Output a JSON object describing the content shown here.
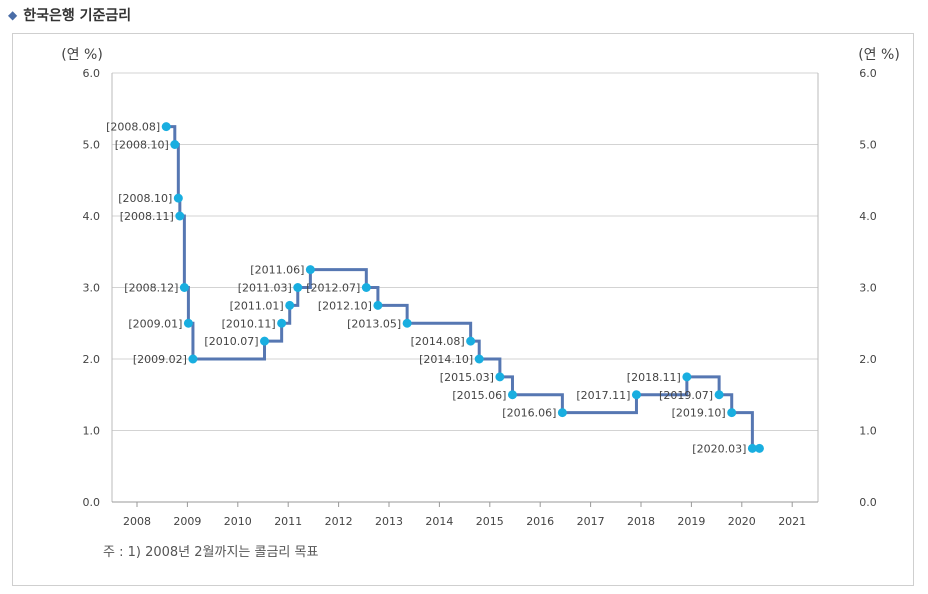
{
  "header": {
    "title": "한국은행 기준금리",
    "bullet_icon": "diamond-icon"
  },
  "footnote": "주 : 1) 2008년 2월까지는 콜금리 목표",
  "chart_data": {
    "type": "line",
    "step": true,
    "title": "",
    "ylabel_left": "(연 %)",
    "ylabel_right": "(연 %)",
    "ylim": [
      0,
      6
    ],
    "xlim": [
      2008,
      2021
    ],
    "y_ticks": [
      "0.0",
      "1.0",
      "2.0",
      "3.0",
      "4.0",
      "5.0",
      "6.0"
    ],
    "x_ticks": [
      "2008",
      "2009",
      "2010",
      "2011",
      "2012",
      "2013",
      "2014",
      "2015",
      "2016",
      "2017",
      "2018",
      "2019",
      "2020",
      "2021"
    ],
    "grid": true,
    "colors": {
      "line": "#5677b2",
      "marker": "#19aee0",
      "grid": "#d3d3d3"
    },
    "points": [
      {
        "label": "[2008.08]",
        "x": 2008.58,
        "y": 5.25
      },
      {
        "label": "[2008.10]",
        "x": 2008.75,
        "y": 5.0
      },
      {
        "label": "[2008.10]",
        "x": 2008.82,
        "y": 4.25
      },
      {
        "label": "[2008.11]",
        "x": 2008.85,
        "y": 4.0
      },
      {
        "label": "[2008.12]",
        "x": 2008.94,
        "y": 3.0
      },
      {
        "label": "[2009.01]",
        "x": 2009.02,
        "y": 2.5
      },
      {
        "label": "[2009.02]",
        "x": 2009.11,
        "y": 2.0
      },
      {
        "label": "[2010.07]",
        "x": 2010.53,
        "y": 2.25
      },
      {
        "label": "[2010.11]",
        "x": 2010.87,
        "y": 2.5
      },
      {
        "label": "[2011.01]",
        "x": 2011.03,
        "y": 2.75
      },
      {
        "label": "[2011.03]",
        "x": 2011.19,
        "y": 3.0
      },
      {
        "label": "[2011.06]",
        "x": 2011.44,
        "y": 3.25
      },
      {
        "label": "[2012.07]",
        "x": 2012.55,
        "y": 3.0
      },
      {
        "label": "[2012.10]",
        "x": 2012.78,
        "y": 2.75
      },
      {
        "label": "[2013.05]",
        "x": 2013.36,
        "y": 2.5
      },
      {
        "label": "[2014.08]",
        "x": 2014.62,
        "y": 2.25
      },
      {
        "label": "[2014.10]",
        "x": 2014.79,
        "y": 2.0
      },
      {
        "label": "[2015.03]",
        "x": 2015.2,
        "y": 1.75
      },
      {
        "label": "[2015.06]",
        "x": 2015.45,
        "y": 1.5
      },
      {
        "label": "[2016.06]",
        "x": 2016.44,
        "y": 1.25
      },
      {
        "label": "[2017.11]",
        "x": 2017.91,
        "y": 1.5
      },
      {
        "label": "[2018.11]",
        "x": 2018.91,
        "y": 1.75
      },
      {
        "label": "[2019.07]",
        "x": 2019.55,
        "y": 1.5
      },
      {
        "label": "[2019.10]",
        "x": 2019.8,
        "y": 1.25
      },
      {
        "label": "[2020.03]",
        "x": 2020.21,
        "y": 0.75
      },
      {
        "label": "",
        "x": 2020.35,
        "y": 0.75
      }
    ]
  }
}
